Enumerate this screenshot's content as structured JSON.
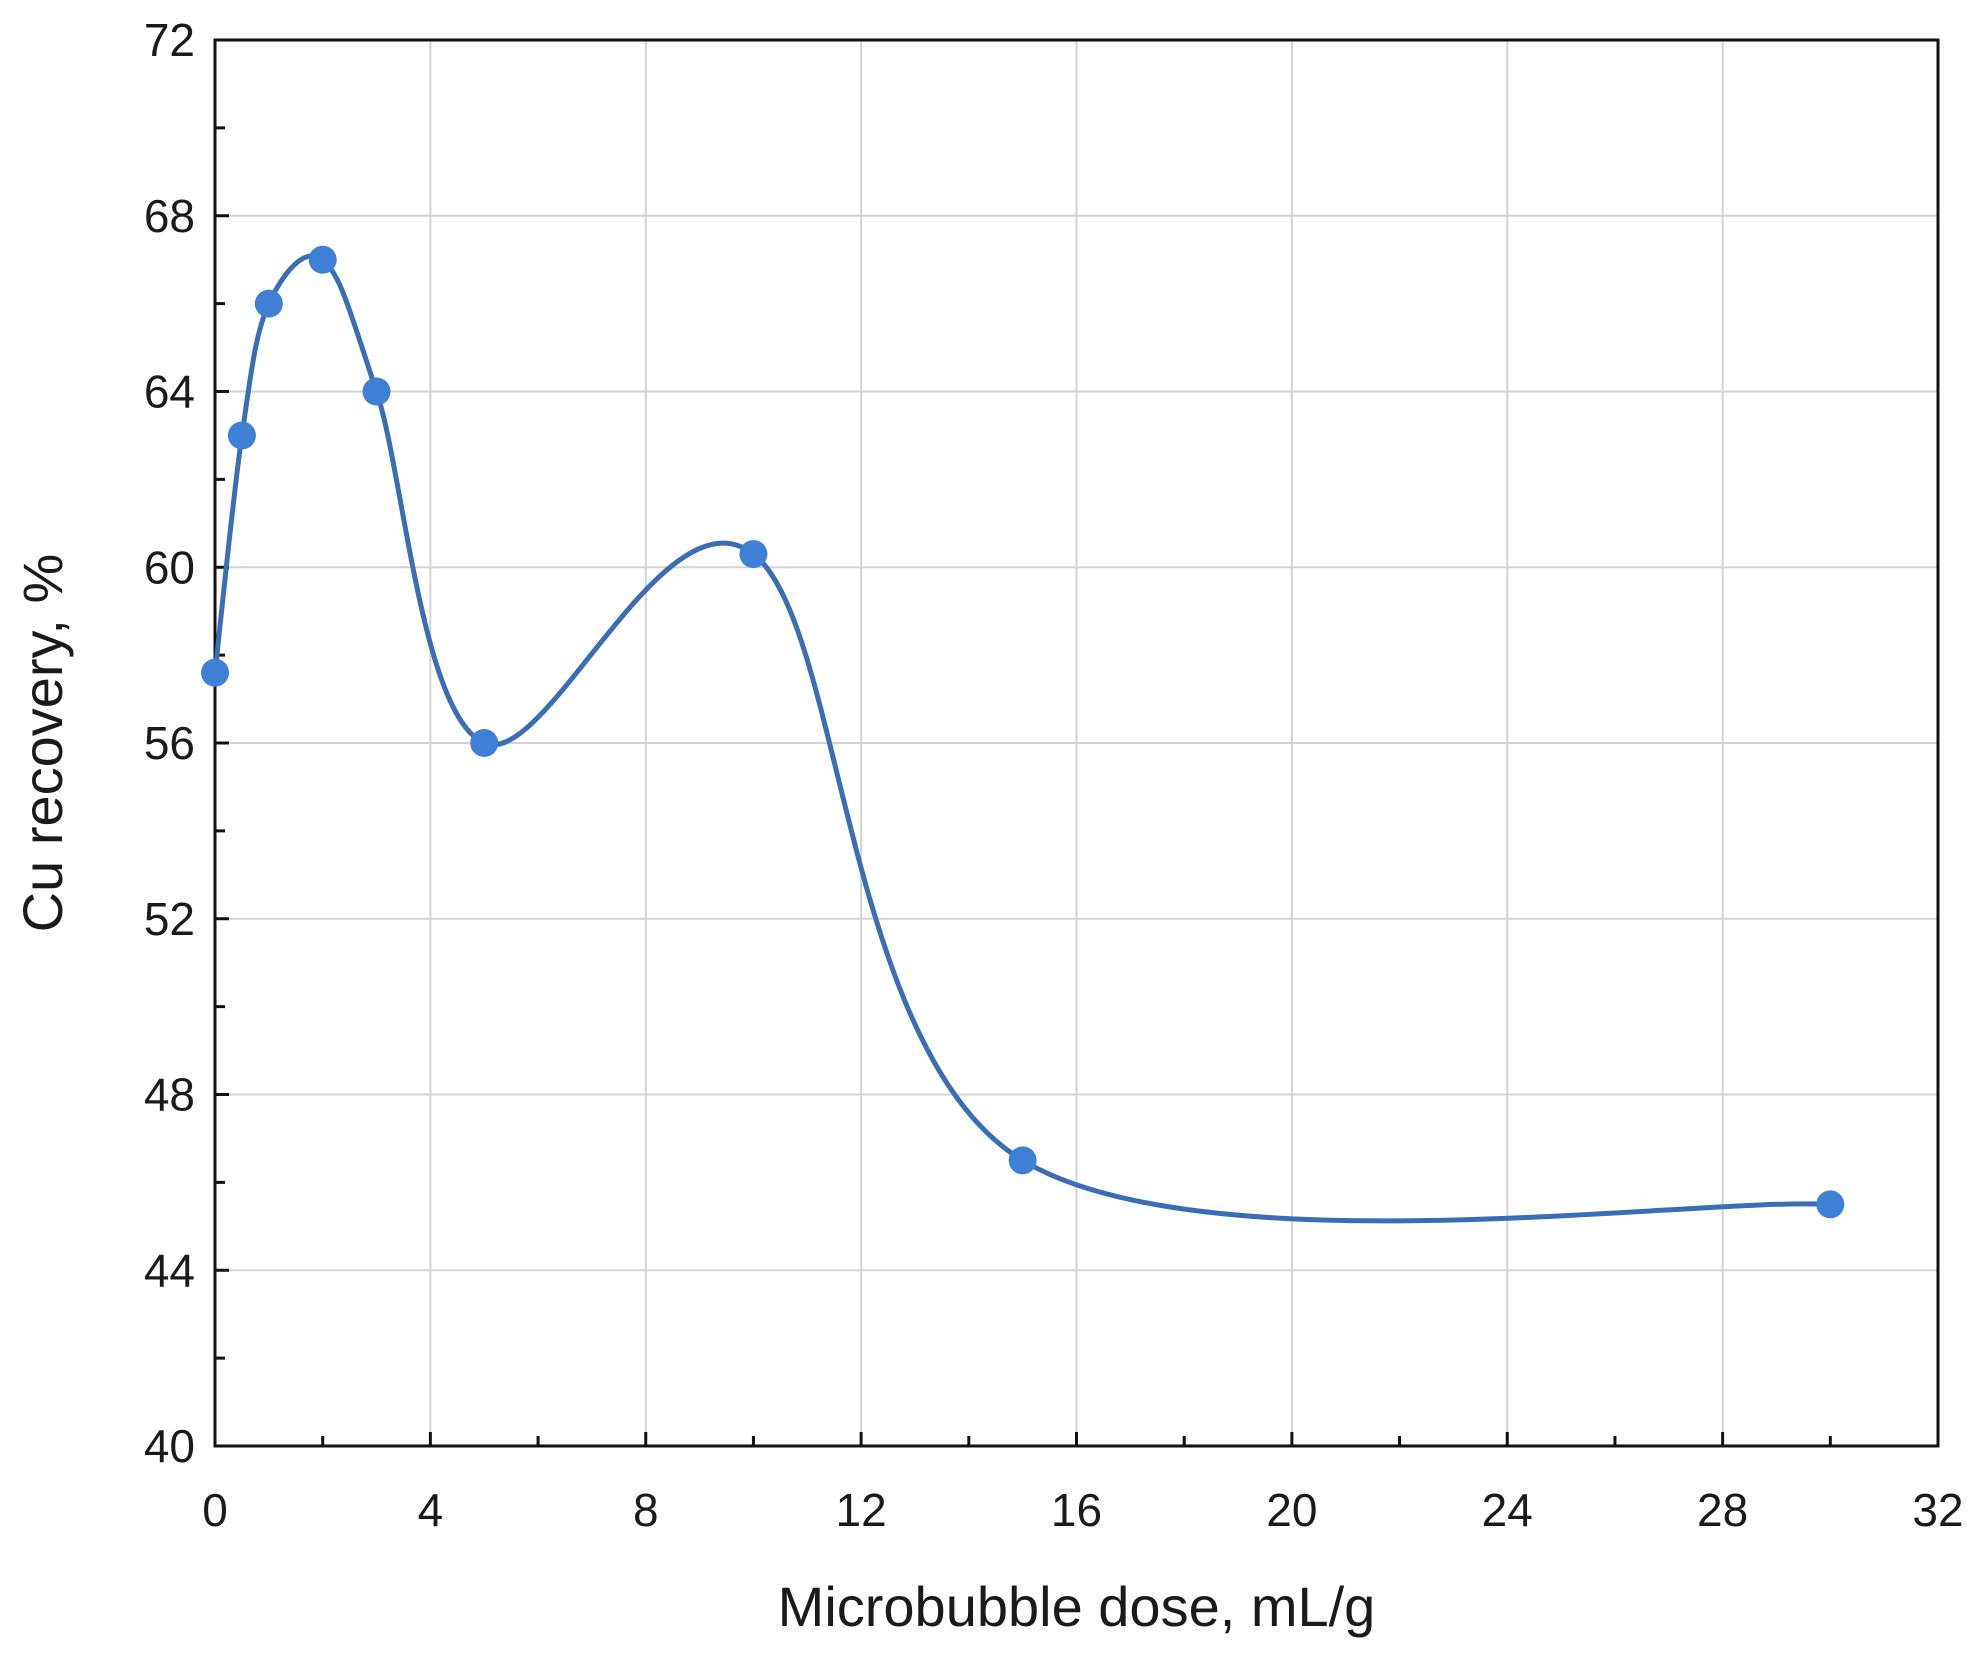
{
  "chart_data": {
    "type": "line",
    "title": "",
    "xlabel": "Microbubble dose, mL/g",
    "ylabel": "Cu recovery, %",
    "xlim": [
      0,
      32
    ],
    "ylim": [
      40,
      72
    ],
    "x_ticks": [
      "0",
      "4",
      "8",
      "12",
      "16",
      "20",
      "24",
      "28",
      "32"
    ],
    "y_ticks": [
      "40",
      "44",
      "48",
      "52",
      "56",
      "60",
      "64",
      "68",
      "72"
    ],
    "grid": true,
    "smooth": true,
    "series": [
      {
        "x": [
          0,
          0.5,
          1,
          2,
          3,
          5,
          10,
          15,
          30
        ],
        "y": [
          57.6,
          63.0,
          66.0,
          67.0,
          64.0,
          56.0,
          60.3,
          46.5,
          45.5
        ]
      }
    ],
    "colors": {
      "line": "#3a6db5",
      "marker": "#3f7fd6",
      "grid": "#d3d3d3",
      "axis": "#111111"
    }
  }
}
